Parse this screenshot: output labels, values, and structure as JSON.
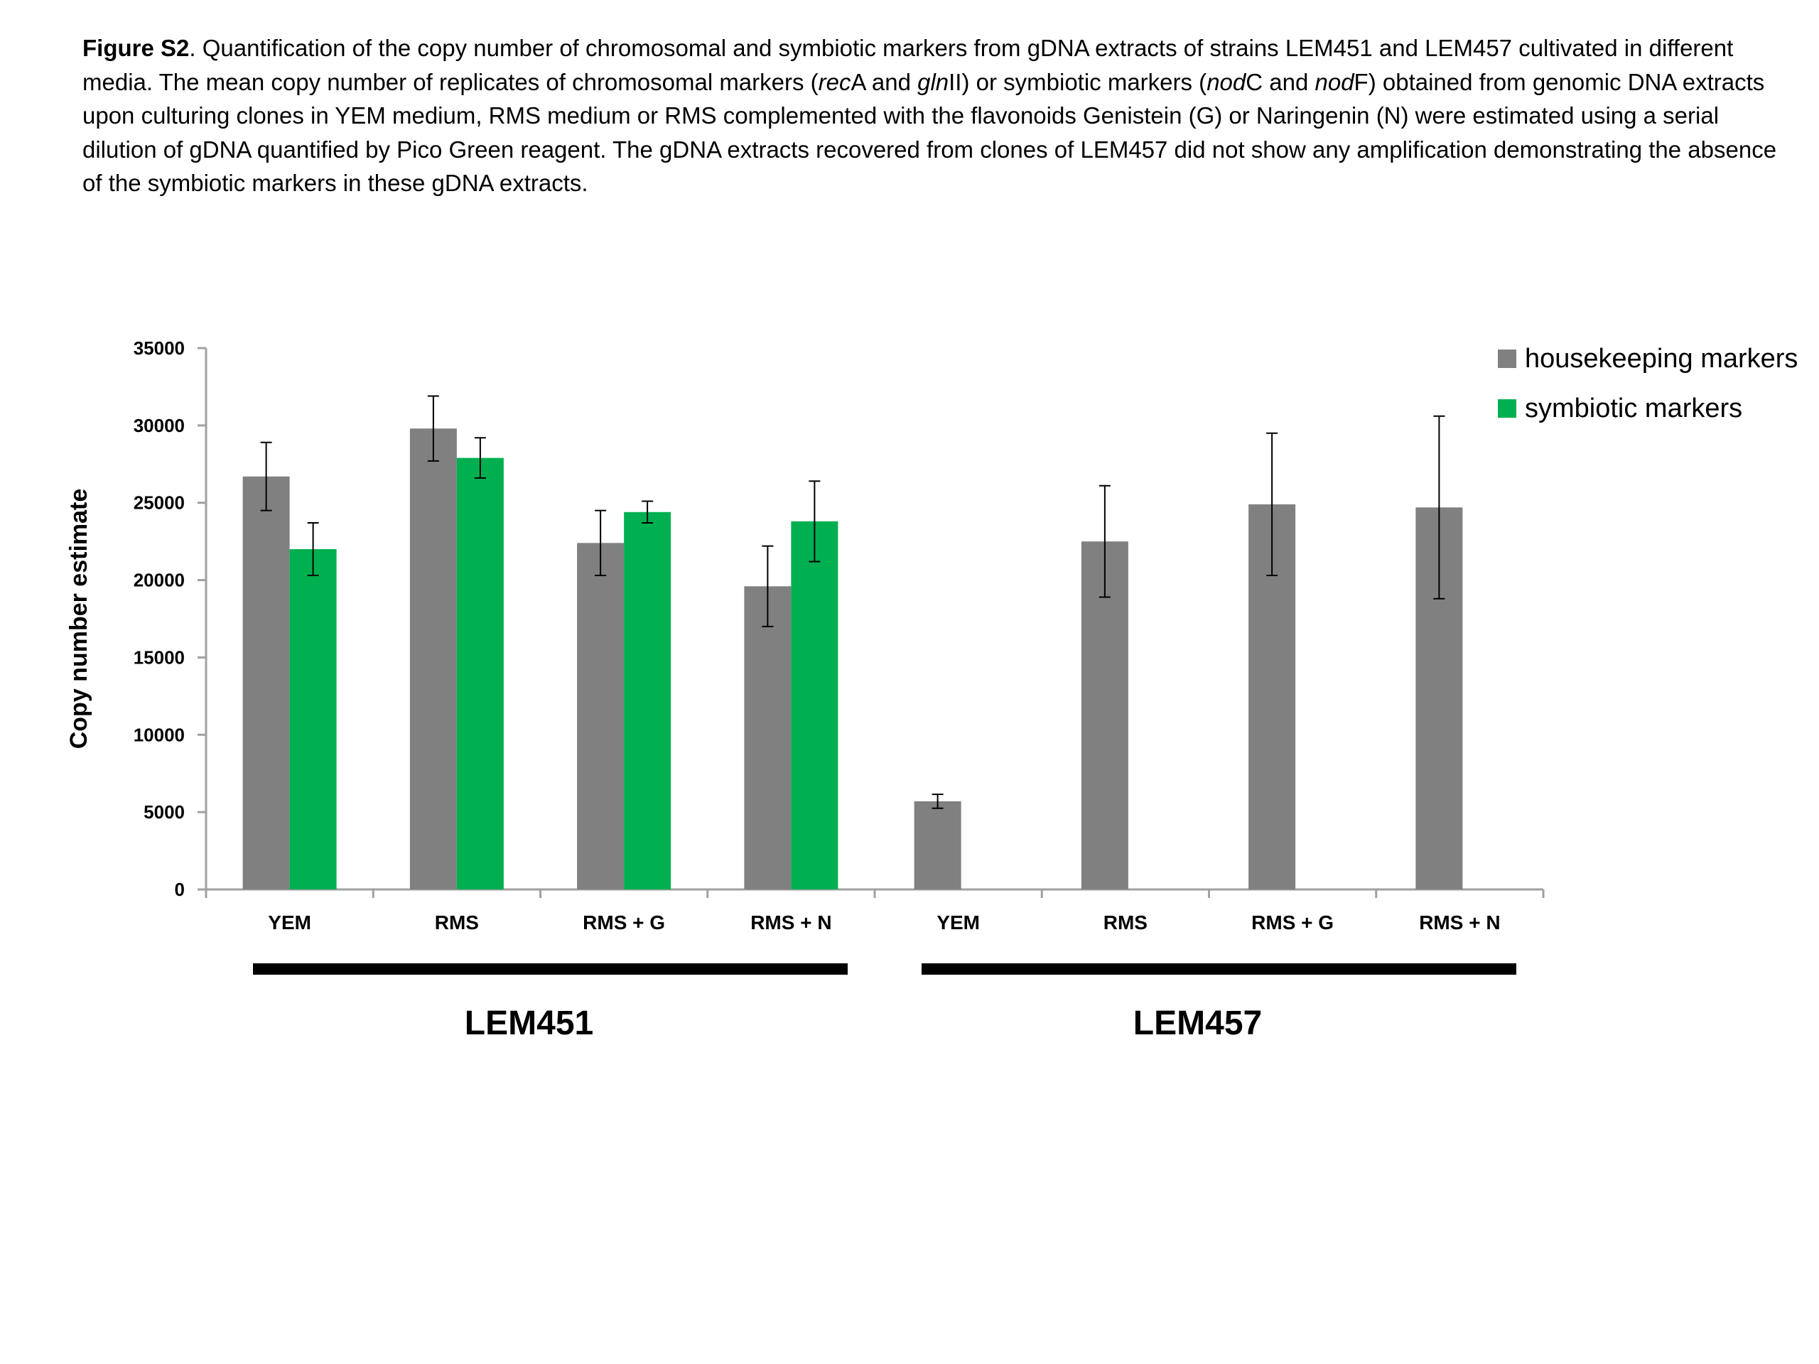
{
  "caption": {
    "lead": "Figure S2",
    "p1": ". Quantification of the copy number of chromosomal and symbiotic markers from gDNA extracts of strains LEM451 and LEM457 cultivated in different media. The mean copy number  of replicates of chromosomal markers (",
    "g1": "rec",
    "p2": "A and ",
    "g2": "gln",
    "p3": "II) or symbiotic markers (",
    "g3": "nod",
    "p4": "C and ",
    "g4": "nod",
    "p5": "F) obtained  from genomic DNA extracts upon culturing clones in YEM medium, RMS medium or RMS complemented with the flavonoids Genistein (G) or Naringenin (N) were estimated using a serial dilution of gDNA quantified by Pico Green reagent. The gDNA extracts recovered from clones of LEM457 did not show any amplification demonstrating the absence of the symbiotic markers  in these gDNA extracts."
  },
  "colors": {
    "housekeeping": "#808080",
    "symbiotic": "#00B050",
    "axis": "#a0a0a0",
    "error": "#000000",
    "group_bar": "#000000"
  },
  "chart_data": {
    "type": "bar",
    "title": "",
    "xlabel": "",
    "ylabel": "Copy number estimate",
    "ylim": [
      0,
      35000
    ],
    "yticks": [
      0,
      5000,
      10000,
      15000,
      20000,
      25000,
      30000,
      35000
    ],
    "categories": [
      "YEM",
      "RMS",
      "RMS + G",
      "RMS + N",
      "YEM",
      "RMS",
      "RMS + G",
      "RMS + N"
    ],
    "groups": [
      {
        "label": "LEM451",
        "categories": [
          0,
          1,
          2,
          3
        ]
      },
      {
        "label": "LEM457",
        "categories": [
          4,
          5,
          6,
          7
        ]
      }
    ],
    "series": [
      {
        "name": "housekeeping markers",
        "values": [
          26700,
          29800,
          22400,
          19600,
          5700,
          22500,
          24900,
          24700
        ],
        "errors": [
          2200,
          2100,
          2100,
          2600,
          450,
          3600,
          4600,
          5900
        ]
      },
      {
        "name": "symbiotic markers",
        "values": [
          22000,
          27900,
          24400,
          23800,
          null,
          null,
          null,
          null
        ],
        "errors": [
          1700,
          1300,
          700,
          2600,
          null,
          null,
          null,
          null
        ]
      }
    ],
    "legend_position": "top-right",
    "grid": false
  }
}
